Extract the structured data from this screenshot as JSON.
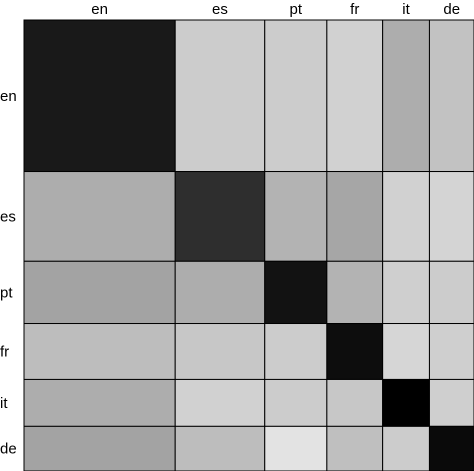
{
  "chart_data": {
    "type": "heatmap",
    "title": "",
    "xlabel": "",
    "ylabel": "",
    "x_labels": [
      "en",
      "es",
      "pt",
      "fr",
      "it",
      "de"
    ],
    "y_labels": [
      "en",
      "es",
      "pt",
      "fr",
      "it",
      "de"
    ],
    "x_weights": [
      0.336,
      0.199,
      0.138,
      0.124,
      0.104,
      0.099
    ],
    "y_weights": [
      0.336,
      0.199,
      0.138,
      0.124,
      0.104,
      0.099
    ],
    "values": [
      [
        0.9,
        0.2,
        0.2,
        0.18,
        0.32,
        0.24
      ],
      [
        0.32,
        0.82,
        0.3,
        0.35,
        0.18,
        0.17
      ],
      [
        0.36,
        0.32,
        0.93,
        0.3,
        0.19,
        0.2
      ],
      [
        0.26,
        0.22,
        0.2,
        0.95,
        0.16,
        0.19
      ],
      [
        0.32,
        0.18,
        0.2,
        0.22,
        1.0,
        0.19
      ],
      [
        0.36,
        0.26,
        0.11,
        0.25,
        0.2,
        0.96
      ]
    ],
    "color_scale": {
      "low": "#ffffff",
      "high": "#000000",
      "vmin": 0,
      "vmax": 1
    }
  }
}
